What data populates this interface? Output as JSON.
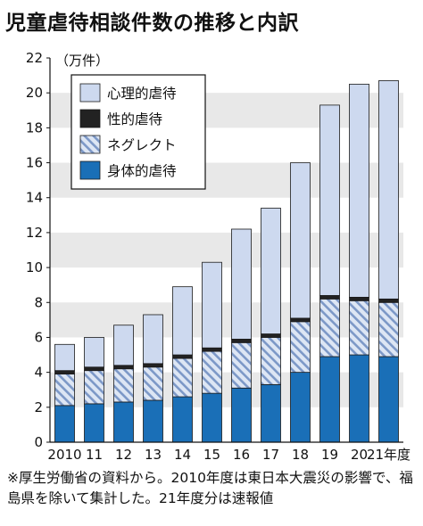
{
  "title": "児童虐待相談件数の推移と内訳",
  "note": "※厚生労働省の資料から。2010年度は東日本大震災の影響で、福島県を除いて集計した。21年度分は速報値",
  "colors": {
    "physical": "#1a6fb7",
    "neglect_bg": "#dde6f4",
    "neglect_hatch": "#7c98c7",
    "sexual": "#222222",
    "psychological": "#cdd9ef",
    "band": "#e8e8e8"
  },
  "chart_data": {
    "type": "bar",
    "stacked": true,
    "title": "児童虐待相談件数の推移と内訳",
    "unit_label": "（万件）",
    "categories": [
      "2010",
      "11",
      "12",
      "13",
      "14",
      "15",
      "16",
      "17",
      "18",
      "19",
      "20",
      "21年度"
    ],
    "series": [
      {
        "name": "身体的虐待",
        "key": "physical",
        "values": [
          2.1,
          2.2,
          2.3,
          2.4,
          2.6,
          2.8,
          3.1,
          3.3,
          4.0,
          4.9,
          5.0,
          4.9
        ]
      },
      {
        "name": "ネグレクト",
        "key": "neglect",
        "values": [
          1.8,
          1.9,
          1.9,
          1.9,
          2.2,
          2.4,
          2.6,
          2.7,
          2.9,
          3.3,
          3.1,
          3.1
        ]
      },
      {
        "name": "性的虐待",
        "key": "sexual",
        "values": [
          0.2,
          0.2,
          0.2,
          0.2,
          0.2,
          0.2,
          0.2,
          0.2,
          0.2,
          0.2,
          0.2,
          0.2
        ]
      },
      {
        "name": "心理的虐待",
        "key": "psychological",
        "values": [
          1.5,
          1.7,
          2.3,
          2.8,
          3.9,
          4.9,
          6.3,
          7.2,
          8.9,
          10.9,
          12.2,
          12.5
        ]
      }
    ],
    "legend_order": [
      "心理的虐待",
      "性的虐待",
      "ネグレクト",
      "身体的虐待"
    ],
    "ylim": [
      0,
      22
    ],
    "yticks": [
      0,
      2,
      4,
      6,
      8,
      10,
      12,
      14,
      16,
      18,
      20,
      22
    ],
    "legend_position": "top-left",
    "grid": "alternating horizontal bands"
  }
}
